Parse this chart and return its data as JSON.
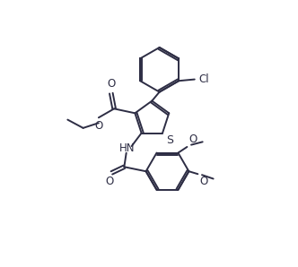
{
  "background": "#ffffff",
  "line_color": "#2d2d44",
  "line_width": 1.4,
  "font_size": 8.5,
  "xlim": [
    0,
    10
  ],
  "ylim": [
    0,
    9
  ]
}
